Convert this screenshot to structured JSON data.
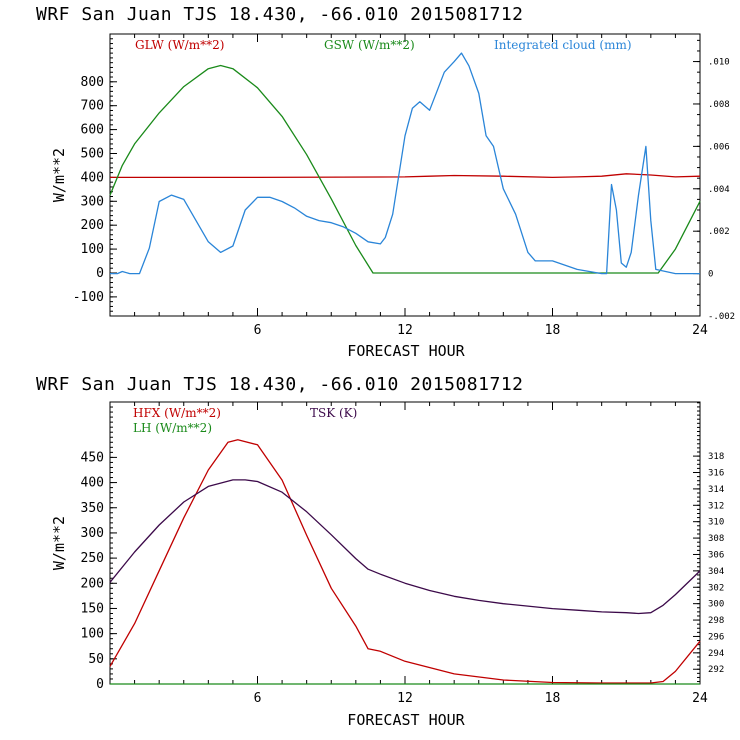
{
  "chart_data": [
    {
      "type": "line",
      "title": "WRF  San Juan TJS  18.430, -66.010  2015081712",
      "xlabel": "FORECAST HOUR",
      "ylabel": "W/m**2",
      "xlim": [
        0,
        24
      ],
      "ylim": [
        -180,
        1000
      ],
      "y2lim": [
        -0.002,
        0.0113
      ],
      "x_ticks": [
        6,
        12,
        18,
        24
      ],
      "y_ticks": [
        -100,
        0,
        100,
        200,
        300,
        400,
        500,
        600,
        700,
        800
      ],
      "y2_ticks": [
        {
          "value": -0.002,
          "label": "-.002"
        },
        {
          "value": 0,
          "label": "0"
        },
        {
          "value": 0.002,
          "label": ".002"
        },
        {
          "value": 0.004,
          "label": ".004"
        },
        {
          "value": 0.006,
          "label": ".006"
        },
        {
          "value": 0.008,
          "label": ".008"
        },
        {
          "value": 0.01,
          "label": ".010"
        }
      ],
      "series": [
        {
          "name": "GLW (W/m**2)",
          "color": "#c00000",
          "axis": "left",
          "x": [
            0,
            6,
            12,
            13,
            14,
            16,
            18,
            19,
            20,
            21,
            22,
            23,
            24
          ],
          "y": [
            400,
            400,
            402,
            405,
            408,
            405,
            400,
            402,
            405,
            415,
            410,
            402,
            405
          ]
        },
        {
          "name": "GSW (W/m**2)",
          "color": "#1a8a1a",
          "axis": "left",
          "x": [
            0,
            0.5,
            1,
            2,
            3,
            4,
            4.5,
            5,
            6,
            7,
            8,
            9,
            10,
            10.7,
            11,
            12,
            14,
            16,
            18,
            20,
            22.3,
            23,
            24
          ],
          "y": [
            325,
            450,
            540,
            670,
            780,
            855,
            868,
            855,
            775,
            655,
            495,
            310,
            115,
            0,
            0,
            0,
            0,
            0,
            0,
            0,
            0,
            100,
            300
          ]
        },
        {
          "name": "Integrated cloud (mm)",
          "color": "#2a85d8",
          "axis": "right",
          "x": [
            0,
            0.3,
            0.5,
            0.8,
            1.2,
            1.6,
            2,
            2.5,
            3,
            3.5,
            4,
            4.5,
            5,
            5.5,
            6,
            6.5,
            7,
            7.5,
            8,
            8.5,
            9,
            9.5,
            10,
            10.5,
            11,
            11.2,
            11.5,
            12,
            12.3,
            12.6,
            13,
            13.3,
            13.6,
            14,
            14.3,
            14.6,
            15,
            15.3,
            15.6,
            16,
            16.5,
            17,
            17.3,
            17.6,
            18,
            18.5,
            19,
            19.5,
            20,
            20.2,
            20.4,
            20.6,
            20.8,
            21,
            21.2,
            21.5,
            21.8,
            22,
            22.2,
            23,
            24
          ],
          "y": [
            0,
            0,
            0.0001,
            0,
            0,
            0.0012,
            0.0034,
            0.0037,
            0.0035,
            0.0025,
            0.0015,
            0.001,
            0.0013,
            0.003,
            0.0036,
            0.0036,
            0.0034,
            0.0031,
            0.0027,
            0.0025,
            0.0024,
            0.0022,
            0.0019,
            0.0015,
            0.0014,
            0.0017,
            0.0028,
            0.0065,
            0.0078,
            0.0081,
            0.0077,
            0.0086,
            0.0095,
            0.01,
            0.0104,
            0.0098,
            0.0085,
            0.0065,
            0.006,
            0.004,
            0.0028,
            0.001,
            0.0006,
            0.0006,
            0.0006,
            0.0004,
            0.0002,
            0.0001,
            0,
            0,
            0.0042,
            0.003,
            0.0005,
            0.0003,
            0.001,
            0.0037,
            0.006,
            0.0025,
            0.0002,
            0,
            0
          ],
          "y_right": true
        }
      ]
    },
    {
      "type": "line",
      "title": "WRF  San Juan TJS  18.430, -66.010  2015081712",
      "xlabel": "FORECAST HOUR",
      "ylabel": "W/m**2",
      "xlim": [
        0,
        24
      ],
      "ylim": [
        0,
        560
      ],
      "y2lim": [
        290.2,
        324.6
      ],
      "x_ticks": [
        6,
        12,
        18,
        24
      ],
      "y_ticks": [
        0,
        50,
        100,
        150,
        200,
        250,
        300,
        350,
        400,
        450
      ],
      "y2_ticks": [
        292,
        294,
        296,
        298,
        300,
        302,
        304,
        306,
        308,
        310,
        312,
        314,
        316,
        318
      ],
      "series": [
        {
          "name": "HFX (W/m**2)",
          "color": "#c00000",
          "axis": "left",
          "x": [
            0,
            1,
            2,
            3,
            4,
            4.8,
            5.2,
            6,
            7,
            8,
            9,
            10,
            10.5,
            11,
            12,
            14,
            16,
            18,
            20,
            22,
            22.5,
            23,
            24
          ],
          "y": [
            35,
            120,
            225,
            330,
            425,
            480,
            485,
            475,
            405,
            295,
            190,
            115,
            70,
            65,
            45,
            20,
            8,
            3,
            2,
            2,
            5,
            25,
            85
          ]
        },
        {
          "name": "LH  (W/m**2)",
          "color": "#1a8a1a",
          "axis": "left",
          "x": [
            0,
            24
          ],
          "y": [
            0,
            0
          ]
        },
        {
          "name": "TSK (K)",
          "color": "#3c0a4a",
          "axis": "right",
          "x": [
            0,
            1,
            2,
            3,
            4,
            5,
            5.5,
            6,
            7,
            8,
            9,
            10,
            10.5,
            11,
            12,
            13,
            14,
            15,
            16,
            17,
            18,
            19,
            20,
            21,
            21.5,
            22,
            22.5,
            23,
            24
          ],
          "y": [
            302.6,
            306.3,
            309.6,
            312.4,
            314.3,
            315.1,
            315.1,
            314.9,
            313.6,
            311.2,
            308.4,
            305.5,
            304.2,
            303.6,
            302.5,
            301.6,
            300.9,
            300.4,
            300.0,
            299.7,
            299.4,
            299.2,
            299.0,
            298.9,
            298.8,
            298.9,
            299.8,
            301.1,
            304.0
          ]
        }
      ]
    }
  ]
}
